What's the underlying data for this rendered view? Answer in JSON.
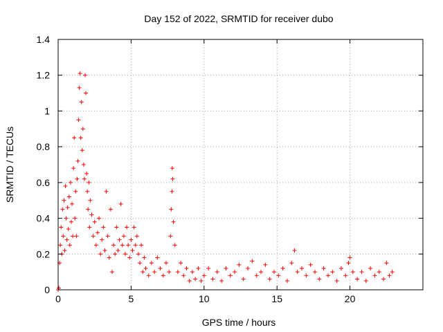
{
  "chart_data": {
    "type": "scatter",
    "title": "Day 152 of 2022, SRMTID for receiver dubo",
    "xlabel": "GPS time / hours",
    "ylabel": "SRMTID / TECUs",
    "xlim": [
      0,
      25
    ],
    "ylim": [
      0,
      1.4
    ],
    "xticks": [
      0,
      5,
      10,
      15,
      20
    ],
    "xtick_labels": [
      "0",
      "5",
      "10",
      "15",
      "20"
    ],
    "yticks": [
      0,
      0.2,
      0.4,
      0.6,
      0.8,
      1.0,
      1.2,
      1.4
    ],
    "ytick_labels": [
      "0",
      "0.2",
      "0.4",
      "0.6",
      "0.8",
      "1",
      "1.2",
      "1.4"
    ],
    "grid": true,
    "marker": "+",
    "color": "#ff0000",
    "series": [
      {
        "name": "SRMTID",
        "points": [
          [
            0.0,
            0.0
          ],
          [
            0.05,
            0.01
          ],
          [
            0.1,
            0.15
          ],
          [
            0.15,
            0.25
          ],
          [
            0.2,
            0.35
          ],
          [
            0.25,
            0.2
          ],
          [
            0.3,
            0.45
          ],
          [
            0.35,
            0.3
          ],
          [
            0.4,
            0.5
          ],
          [
            0.45,
            0.22
          ],
          [
            0.5,
            0.58
          ],
          [
            0.55,
            0.4
          ],
          [
            0.6,
            0.28
          ],
          [
            0.65,
            0.46
          ],
          [
            0.7,
            0.34
          ],
          [
            0.75,
            0.52
          ],
          [
            0.8,
            0.25
          ],
          [
            0.85,
            0.6
          ],
          [
            0.9,
            0.38
          ],
          [
            0.95,
            0.48
          ],
          [
            1.0,
            0.3
          ],
          [
            1.05,
            0.68
          ],
          [
            1.1,
            0.85
          ],
          [
            1.15,
            0.4
          ],
          [
            1.2,
            0.55
          ],
          [
            1.25,
            0.3
          ],
          [
            1.3,
            0.62
          ],
          [
            1.35,
            0.72
          ],
          [
            1.4,
            0.95
          ],
          [
            1.45,
            1.13
          ],
          [
            1.5,
            1.21
          ],
          [
            1.55,
            0.85
          ],
          [
            1.6,
            1.05
          ],
          [
            1.65,
            0.78
          ],
          [
            1.7,
            0.9
          ],
          [
            1.75,
            0.7
          ],
          [
            1.8,
            0.62
          ],
          [
            1.85,
            1.2
          ],
          [
            1.9,
            1.1
          ],
          [
            1.95,
            0.65
          ],
          [
            2.0,
            0.55
          ],
          [
            2.05,
            0.45
          ],
          [
            2.1,
            0.6
          ],
          [
            2.15,
            0.35
          ],
          [
            2.2,
            0.5
          ],
          [
            2.3,
            0.42
          ],
          [
            2.4,
            0.3
          ],
          [
            2.5,
            0.38
          ],
          [
            2.6,
            0.25
          ],
          [
            2.7,
            0.32
          ],
          [
            2.8,
            0.4
          ],
          [
            2.9,
            0.2
          ],
          [
            3.0,
            0.28
          ],
          [
            3.1,
            0.35
          ],
          [
            3.2,
            0.22
          ],
          [
            3.3,
            0.55
          ],
          [
            3.4,
            0.3
          ],
          [
            3.5,
            0.18
          ],
          [
            3.6,
            0.45
          ],
          [
            3.7,
            0.1
          ],
          [
            3.8,
            0.25
          ],
          [
            3.9,
            0.2
          ],
          [
            4.0,
            0.35
          ],
          [
            4.1,
            0.22
          ],
          [
            4.2,
            0.28
          ],
          [
            4.3,
            0.48
          ],
          [
            4.4,
            0.25
          ],
          [
            4.5,
            0.3
          ],
          [
            4.6,
            0.2
          ],
          [
            4.7,
            0.35
          ],
          [
            4.8,
            0.25
          ],
          [
            4.9,
            0.18
          ],
          [
            5.0,
            0.28
          ],
          [
            5.1,
            0.22
          ],
          [
            5.2,
            0.35
          ],
          [
            5.3,
            0.25
          ],
          [
            5.4,
            0.3
          ],
          [
            5.5,
            0.2
          ],
          [
            5.6,
            0.15
          ],
          [
            5.7,
            0.25
          ],
          [
            5.8,
            0.1
          ],
          [
            5.9,
            0.18
          ],
          [
            6.0,
            0.12
          ],
          [
            6.2,
            0.08
          ],
          [
            6.4,
            0.15
          ],
          [
            6.6,
            0.1
          ],
          [
            6.8,
            0.18
          ],
          [
            7.0,
            0.12
          ],
          [
            7.2,
            0.08
          ],
          [
            7.4,
            0.15
          ],
          [
            7.6,
            0.1
          ],
          [
            7.7,
            0.3
          ],
          [
            7.75,
            0.45
          ],
          [
            7.8,
            0.55
          ],
          [
            7.82,
            0.68
          ],
          [
            7.85,
            0.62
          ],
          [
            7.9,
            0.38
          ],
          [
            8.0,
            0.25
          ],
          [
            8.2,
            0.1
          ],
          [
            8.4,
            0.15
          ],
          [
            8.6,
            0.08
          ],
          [
            8.8,
            0.12
          ],
          [
            9.0,
            0.05
          ],
          [
            9.2,
            0.1
          ],
          [
            9.4,
            0.06
          ],
          [
            9.6,
            0.12
          ],
          [
            9.8,
            0.05
          ],
          [
            10.0,
            0.08
          ],
          [
            10.3,
            0.12
          ],
          [
            10.6,
            0.06
          ],
          [
            10.9,
            0.1
          ],
          [
            11.2,
            0.05
          ],
          [
            11.5,
            0.12
          ],
          [
            11.8,
            0.08
          ],
          [
            12.1,
            0.1
          ],
          [
            12.4,
            0.14
          ],
          [
            12.7,
            0.06
          ],
          [
            13.0,
            0.12
          ],
          [
            13.3,
            0.16
          ],
          [
            13.6,
            0.08
          ],
          [
            13.9,
            0.1
          ],
          [
            14.2,
            0.14
          ],
          [
            14.5,
            0.06
          ],
          [
            14.8,
            0.1
          ],
          [
            15.1,
            0.08
          ],
          [
            15.4,
            0.12
          ],
          [
            15.7,
            0.05
          ],
          [
            16.0,
            0.15
          ],
          [
            16.2,
            0.22
          ],
          [
            16.4,
            0.1
          ],
          [
            16.7,
            0.12
          ],
          [
            17.0,
            0.08
          ],
          [
            17.3,
            0.14
          ],
          [
            17.6,
            0.1
          ],
          [
            17.9,
            0.06
          ],
          [
            18.2,
            0.12
          ],
          [
            18.5,
            0.08
          ],
          [
            18.8,
            0.1
          ],
          [
            19.1,
            0.05
          ],
          [
            19.4,
            0.12
          ],
          [
            19.7,
            0.08
          ],
          [
            19.9,
            0.15
          ],
          [
            20.0,
            0.18
          ],
          [
            20.2,
            0.1
          ],
          [
            20.5,
            0.06
          ],
          [
            20.8,
            0.1
          ],
          [
            21.1,
            0.05
          ],
          [
            21.4,
            0.12
          ],
          [
            21.7,
            0.08
          ],
          [
            22.0,
            0.1
          ],
          [
            22.3,
            0.06
          ],
          [
            22.5,
            0.15
          ],
          [
            22.7,
            0.08
          ],
          [
            22.9,
            0.1
          ]
        ]
      }
    ]
  }
}
